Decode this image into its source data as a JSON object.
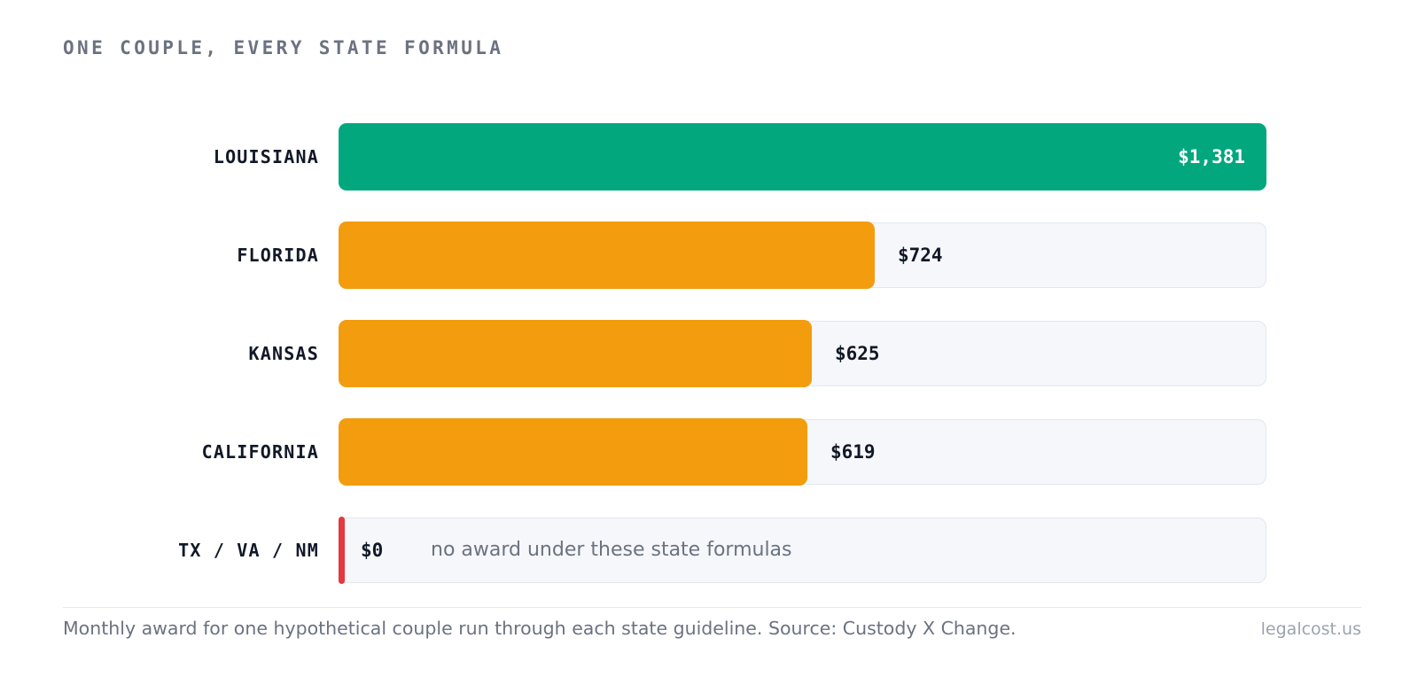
{
  "title": "ONE COUPLE, EVERY STATE FORMULA",
  "colors": {
    "highest": "#02a77e",
    "mid": "#f39c0e",
    "zero": "#e5383f"
  },
  "chart_data": {
    "type": "bar",
    "orientation": "horizontal",
    "categories": [
      "LOUISIANA",
      "FLORIDA",
      "KANSAS",
      "CALIFORNIA",
      "TX / VA / NM"
    ],
    "values": [
      1381,
      724,
      625,
      619,
      0
    ],
    "value_labels": [
      "$1,381",
      "$724",
      "$625",
      "$619",
      "$0"
    ],
    "annotations": {
      "TX / VA / NM": "no award under these state formulas"
    },
    "xlim": [
      0,
      1381
    ],
    "grid": false
  },
  "footer": {
    "caption": "Monthly award for one hypothetical couple run through each state guideline. Source: Custody X Change.",
    "brand": "legalcost.us"
  }
}
